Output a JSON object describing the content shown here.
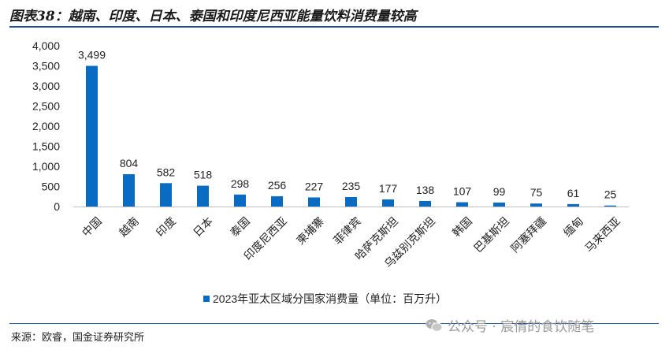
{
  "header": {
    "title": "图表38：越南、印度、日本、泰国和印度尼西亚能量饮料消费量较高"
  },
  "footer": {
    "source": "来源：欧睿，国金证券研究所"
  },
  "watermark": {
    "text": "公众号 · 宸倩的食饮随笔",
    "icon": "wechat-icon"
  },
  "colors": {
    "bar": "#0a6bc2",
    "rule": "#1f4e96"
  },
  "chart_data": {
    "type": "bar",
    "categories": [
      "中国",
      "越南",
      "印度",
      "日本",
      "泰国",
      "印度尼西亚",
      "柬埔寨",
      "菲律宾",
      "哈萨克斯坦",
      "乌兹别克斯坦",
      "韩国",
      "巴基斯坦",
      "阿塞拜疆",
      "缅甸",
      "马来西亚"
    ],
    "values": [
      3499,
      804,
      582,
      518,
      298,
      256,
      227,
      235,
      177,
      138,
      107,
      99,
      75,
      61,
      25
    ],
    "value_labels": [
      "3,499",
      "804",
      "582",
      "518",
      "298",
      "256",
      "227",
      "235",
      "177",
      "138",
      "107",
      "99",
      "75",
      "61",
      "25"
    ],
    "yticks": [
      "0",
      "500",
      "1,000",
      "1,500",
      "2,000",
      "2,500",
      "3,000",
      "3,500",
      "4,000"
    ],
    "ylim": [
      0,
      4000
    ],
    "legend": "2023年亚太区域分国家消费量（单位：百万升）",
    "legend_position": "bottom",
    "grid": false
  }
}
